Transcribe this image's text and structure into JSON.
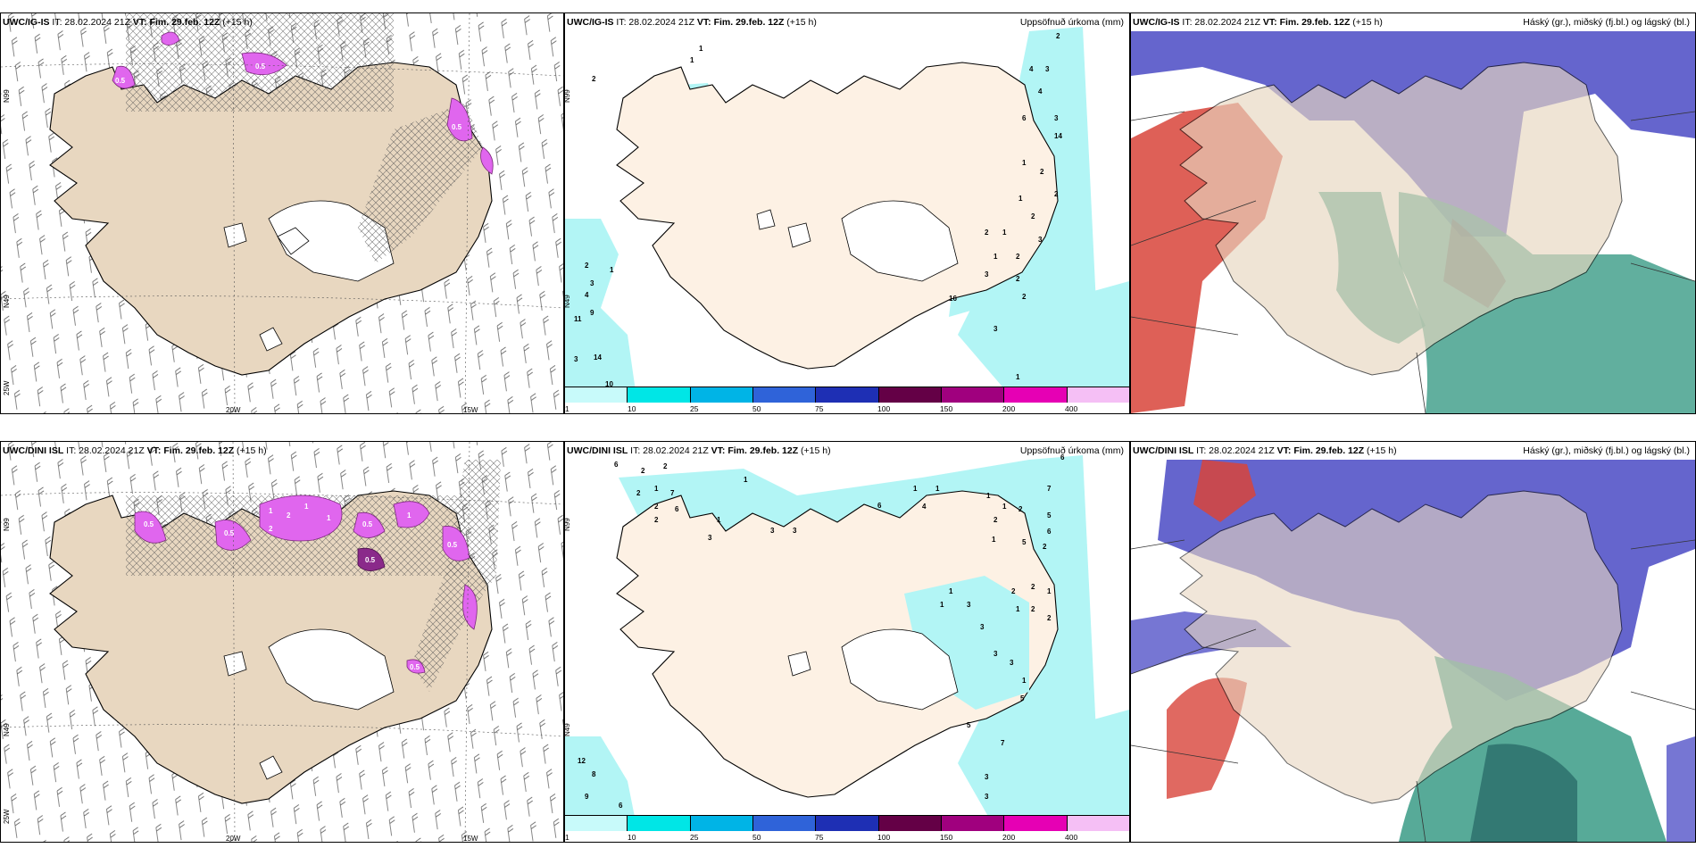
{
  "colors": {
    "land": "#f2e6d6",
    "land_wind": "#e8d7c0",
    "precip_light": "#b2f5f5",
    "snow_pink": "#e066ee",
    "low_cloud": "#3a9b86",
    "high_cloud": "#5454c8",
    "mid_cloud": "#d8443a"
  },
  "panels": [
    {
      "id": "top-left",
      "model": "UWC/IG-IS",
      "it": "IT: 28.02.2024 21Z",
      "vt_label": "VT:",
      "vt": "Fim. 29.feb. 12Z",
      "lead": "(+15 h)",
      "field_title": "",
      "lon_labels": [
        "20W",
        "15W"
      ],
      "lat_labels": [
        "N99",
        "N49",
        "25W"
      ]
    },
    {
      "id": "top-mid",
      "model": "UWC/IG-IS",
      "it": "IT: 28.02.2024 21Z",
      "vt_label": "VT:",
      "vt": "Fim. 29.feb. 12Z",
      "lead": "(+15 h)",
      "field_title": "Uppsöfnuð úrkoma (mm)",
      "lat_labels": [
        "N99",
        "N49"
      ]
    },
    {
      "id": "top-right",
      "model": "UWC/IG-IS",
      "it": "IT: 28.02.2024 21Z",
      "vt_label": "VT:",
      "vt": "Fim. 29.feb. 12Z",
      "lead": "(+15 h)",
      "field_title": "Háský (gr.), miðský (fj.bl.) og lágský (bl.)"
    },
    {
      "id": "bottom-left",
      "model": "UWC/DINI ISL",
      "it": "IT: 28.02.2024 21Z",
      "vt_label": "VT:",
      "vt": "Fim. 29.feb. 12Z",
      "lead": "(+15 h)",
      "field_title": "",
      "lon_labels": [
        "20W",
        "15W"
      ],
      "lat_labels": [
        "N99",
        "N49",
        "25W"
      ]
    },
    {
      "id": "bottom-mid",
      "model": "UWC/DINI ISL",
      "it": "IT: 28.02.2024 21Z",
      "vt_label": "VT:",
      "vt": "Fim. 29.feb. 12Z",
      "lead": "(+15 h)",
      "field_title": "Uppsöfnuð úrkoma (mm)",
      "lat_labels": [
        "N99",
        "N49"
      ]
    },
    {
      "id": "bottom-right",
      "model": "UWC/DINI ISL",
      "it": "IT: 28.02.2024 21Z",
      "vt_label": "VT:",
      "vt": "Fim. 29.feb. 12Z",
      "lead": "(+15 h)",
      "field_title": "Háský (gr.), miðský (fj.bl.) og lágský (bl.)"
    }
  ],
  "colorbar": {
    "colors": [
      "#c8fafa",
      "#00e6e6",
      "#00b4e6",
      "#2f63d9",
      "#1e2fb4",
      "#640046",
      "#a0007e",
      "#e600b4",
      "#f5bff5"
    ],
    "labels": [
      "1",
      "10",
      "25",
      "50",
      "75",
      "100",
      "150",
      "200",
      "400"
    ]
  },
  "precip_numbers_top": [
    "2",
    "1",
    "1",
    "2",
    "4",
    "3",
    "4",
    "6",
    "3",
    "14",
    "1",
    "2",
    "2",
    "1",
    "2",
    "3",
    "2",
    "1",
    "1",
    "2",
    "3",
    "2",
    "16",
    "2",
    "3",
    "1",
    "2",
    "1",
    "3",
    "4",
    "11",
    "9",
    "3",
    "14",
    "10"
  ],
  "precip_numbers_bottom": [
    "6",
    "2",
    "2",
    "1",
    "6",
    "7",
    "1",
    "2",
    "2",
    "7",
    "6",
    "2",
    "3",
    "3",
    "3",
    "1",
    "6",
    "4",
    "1",
    "1",
    "1",
    "1",
    "2",
    "5",
    "6",
    "2",
    "2",
    "5",
    "1",
    "1",
    "3",
    "2",
    "2",
    "1",
    "1",
    "2",
    "2",
    "3",
    "1",
    "3",
    "3",
    "1",
    "5",
    "7",
    "5",
    "3",
    "12",
    "8",
    "9",
    "6",
    "3"
  ],
  "snow_labels_bottom": [
    "0.5",
    "1",
    "2",
    "1",
    "1",
    "0.5",
    "0.5",
    "1",
    "2",
    "0.5",
    "0.5",
    "0.5",
    "1",
    "0.5"
  ],
  "snow_labels_top": [
    "0.5",
    "0.5",
    "0.5",
    "0.5",
    "0.5"
  ]
}
